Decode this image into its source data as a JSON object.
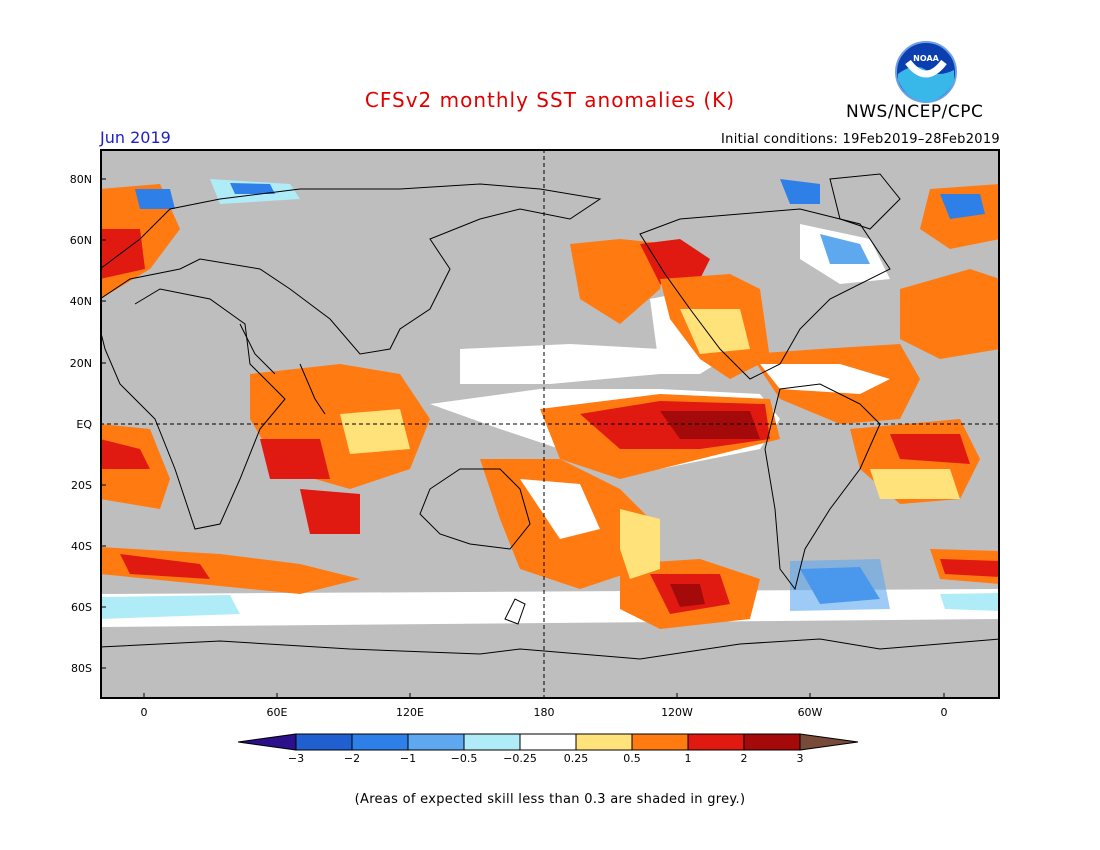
{
  "title": "CFSv2 monthly SST anomalies (K)",
  "period": "Jun 2019",
  "initial_conditions": "Initial conditions: 19Feb2019–28Feb2019",
  "agency": "NWS/NCEP/CPC",
  "logo": {
    "text": "NOAA"
  },
  "footnote": "(Areas of expected skill less than 0.3 are shaded in grey.)",
  "lat_labels": [
    "80N",
    "60N",
    "40N",
    "20N",
    "EQ",
    "20S",
    "40S",
    "60S",
    "80S"
  ],
  "lon_labels": [
    "0",
    "60E",
    "120E",
    "180",
    "120W",
    "60W",
    "0"
  ],
  "colorbar": {
    "labels": [
      "−3",
      "−2",
      "−1",
      "−0.5",
      "−0.25",
      "0.25",
      "0.5",
      "1",
      "2",
      "3"
    ],
    "colors": [
      "#2c0f8a",
      "#1f5fd0",
      "#2e7fe8",
      "#5ea8f0",
      "#b0ecf8",
      "#ffffff",
      "#ffe27a",
      "#ff7a10",
      "#e01a10",
      "#a50a0a",
      "#784a3a"
    ],
    "levels": [
      -3,
      -2,
      -1,
      -0.5,
      -0.25,
      0.25,
      0.5,
      1,
      2,
      3
    ]
  },
  "colors": {
    "title": "#e10000",
    "period": "#1e1ec8",
    "grey_mask": "#bebebe",
    "orange": "#ff7a10",
    "red": "#e01a10",
    "dark_red": "#a50a0a",
    "yellow": "#ffe27a",
    "light_blue": "#b0ecf8",
    "blue": "#2e7fe8"
  }
}
